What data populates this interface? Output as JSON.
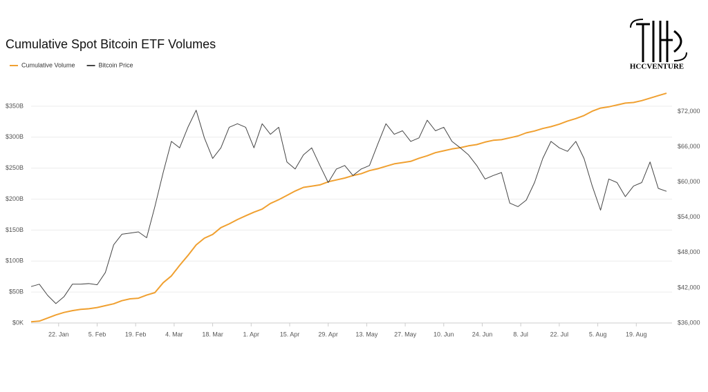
{
  "chart_data": {
    "type": "line",
    "title": "Cumulative Spot Bitcoin ETF Volumes",
    "brand": "HCCVENTURE",
    "x": [
      12,
      15,
      18,
      21,
      24,
      27,
      30,
      33,
      36,
      39,
      42,
      45,
      48,
      51,
      54,
      57,
      60,
      63,
      66,
      69,
      72,
      75,
      78,
      81,
      84,
      87,
      90,
      93,
      96,
      99,
      102,
      105,
      108,
      111,
      114,
      117,
      120,
      123,
      126,
      129,
      132,
      135,
      138,
      141,
      144,
      147,
      150,
      153,
      156,
      159,
      162,
      165,
      168,
      171,
      174,
      177,
      180,
      183,
      186,
      189,
      192,
      195,
      198,
      201,
      204,
      207,
      210,
      213,
      216,
      219,
      222,
      225,
      228,
      231,
      234,
      237,
      240,
      243
    ],
    "xlim": [
      12,
      245
    ],
    "xticks": [
      {
        "value": 22,
        "label": "22. Jan"
      },
      {
        "value": 36,
        "label": "5. Feb"
      },
      {
        "value": 50,
        "label": "19. Feb"
      },
      {
        "value": 64,
        "label": "4. Mar"
      },
      {
        "value": 78,
        "label": "18. Mar"
      },
      {
        "value": 92,
        "label": "1. Apr"
      },
      {
        "value": 106,
        "label": "15. Apr"
      },
      {
        "value": 120,
        "label": "29. Apr"
      },
      {
        "value": 134,
        "label": "13. May"
      },
      {
        "value": 148,
        "label": "27. May"
      },
      {
        "value": 162,
        "label": "10. Jun"
      },
      {
        "value": 176,
        "label": "24. Jun"
      },
      {
        "value": 190,
        "label": "8. Jul"
      },
      {
        "value": 204,
        "label": "22. Jul"
      },
      {
        "value": 218,
        "label": "5. Aug"
      },
      {
        "value": 232,
        "label": "19. Aug"
      }
    ],
    "ylim": [
      0,
      390
    ],
    "yticks": [
      {
        "value": 0,
        "label": "$0K"
      },
      {
        "value": 50,
        "label": "$50B"
      },
      {
        "value": 100,
        "label": "$100B"
      },
      {
        "value": 150,
        "label": "$150B"
      },
      {
        "value": 200,
        "label": "$200B"
      },
      {
        "value": 250,
        "label": "$250B"
      },
      {
        "value": 300,
        "label": "$300B"
      },
      {
        "value": 350,
        "label": "$350B"
      }
    ],
    "y2lim": [
      36000,
      77100
    ],
    "y2ticks": [
      {
        "value": 36000,
        "label": "$36,000"
      },
      {
        "value": 42000,
        "label": "$42,000"
      },
      {
        "value": 48000,
        "label": "$48,000"
      },
      {
        "value": 54000,
        "label": "$54,000"
      },
      {
        "value": 60000,
        "label": "$60,000"
      },
      {
        "value": 66000,
        "label": "$66,000"
      },
      {
        "value": 72000,
        "label": "$72,000"
      }
    ],
    "grid": true,
    "series": [
      {
        "name": "Cumulative Volume",
        "color": "#f0a030",
        "axis": "y",
        "values": [
          2,
          3,
          8,
          13,
          17,
          20,
          22,
          23,
          25,
          28,
          31,
          36,
          39,
          40,
          45,
          49,
          65,
          76,
          93,
          109,
          126,
          137,
          143,
          154,
          160,
          167,
          173,
          179,
          184,
          193,
          199,
          206,
          213,
          219,
          221,
          223,
          228,
          231,
          234,
          238,
          241,
          246,
          249,
          253,
          257,
          259,
          261,
          266,
          270,
          275,
          278,
          281,
          283,
          286,
          288,
          292,
          295,
          296,
          299,
          302,
          307,
          310,
          314,
          317,
          321,
          326,
          330,
          335,
          342,
          347,
          349,
          352,
          355,
          356,
          359,
          363,
          367,
          371
        ]
      },
      {
        "name": "Bitcoin Price",
        "color": "#444444",
        "axis": "y2",
        "values": [
          42200,
          42600,
          40700,
          39300,
          40500,
          42600,
          42600,
          42700,
          42500,
          44600,
          49300,
          51100,
          51300,
          51500,
          50500,
          55800,
          61600,
          66900,
          65800,
          69300,
          72200,
          67500,
          64000,
          65800,
          69300,
          69900,
          69300,
          65800,
          69900,
          68100,
          69300,
          63400,
          62200,
          64600,
          65800,
          62800,
          59900,
          62200,
          62800,
          61100,
          62200,
          62800,
          66400,
          69900,
          68100,
          68700,
          66900,
          67500,
          70500,
          68700,
          69300,
          66900,
          65800,
          64600,
          62800,
          60500,
          61100,
          61600,
          56400,
          55800,
          56900,
          59900,
          64000,
          66900,
          65800,
          65200,
          66900,
          64000,
          59300,
          55200,
          60500,
          59900,
          57500,
          59300,
          59900,
          63400,
          58900,
          58400
        ]
      }
    ]
  }
}
